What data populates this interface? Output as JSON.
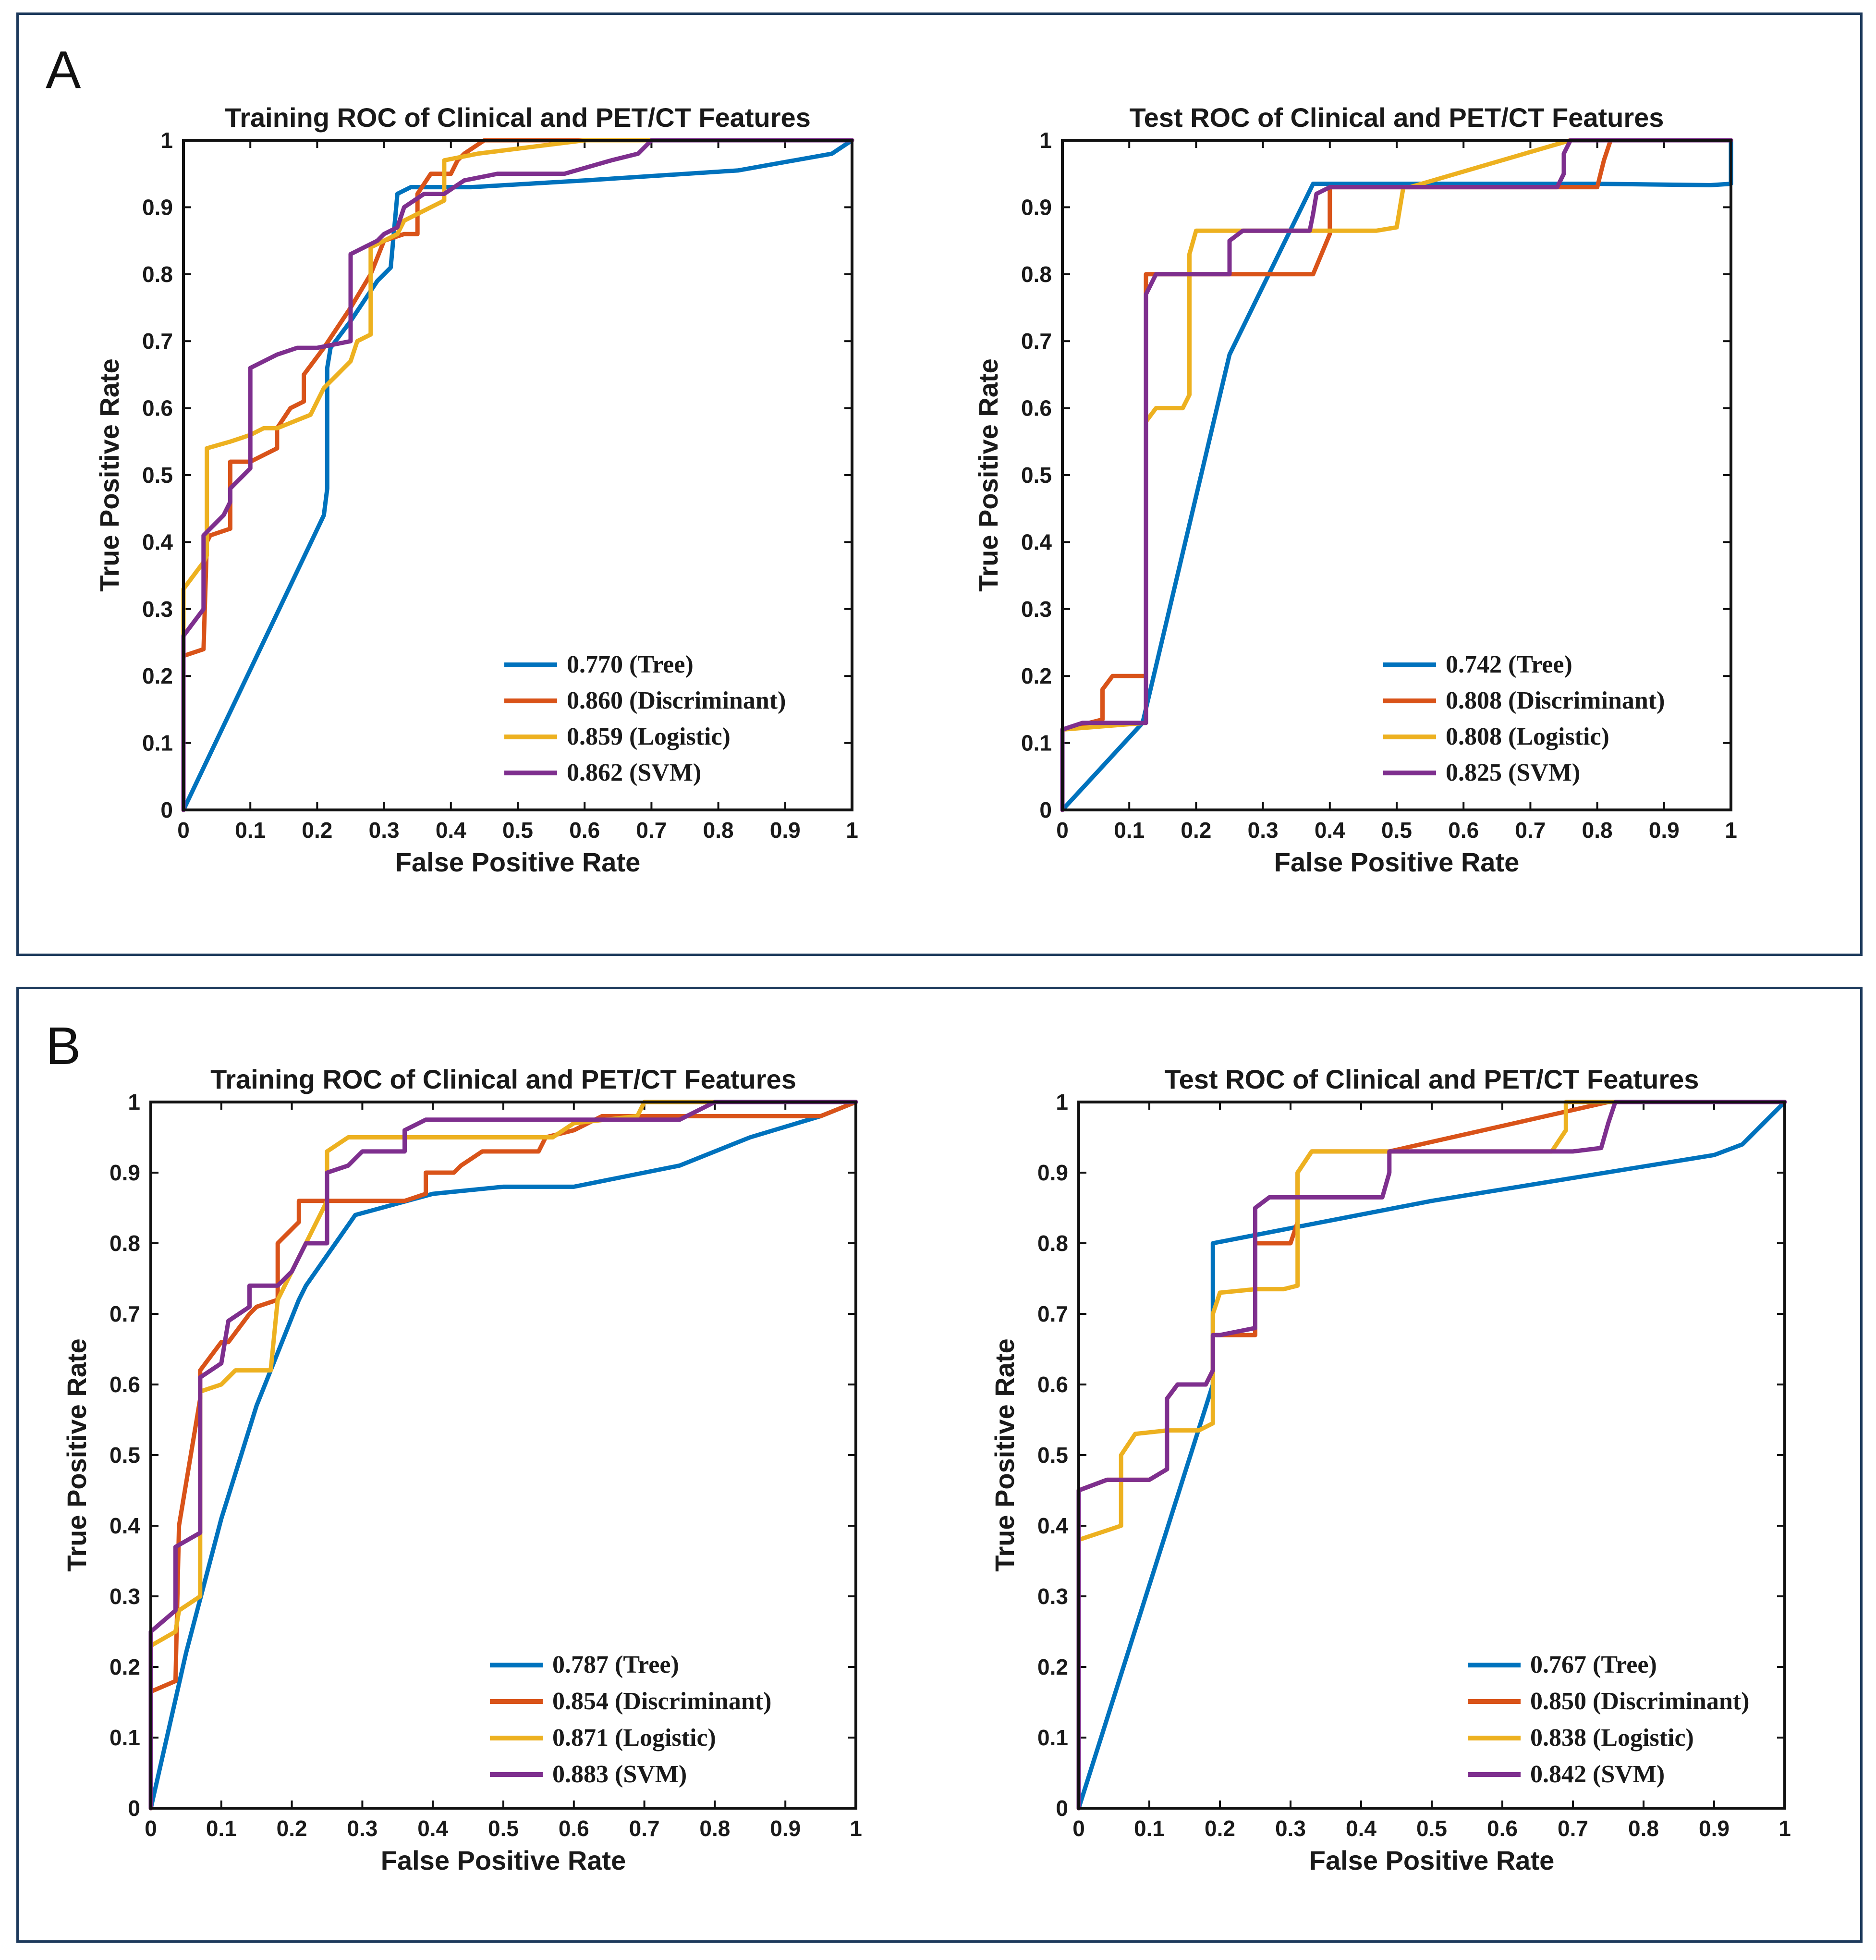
{
  "panels": [
    {
      "label": "A"
    },
    {
      "label": "B"
    }
  ],
  "colors": {
    "tree": "#0072BD",
    "discriminant": "#D95319",
    "logistic": "#EDB120",
    "svm": "#7E2F8E",
    "frame": "#1d3a5c"
  },
  "chart_data": [
    {
      "type": "line",
      "panel": "A",
      "title": "Training ROC of Clinical and PET/CT Features",
      "xlabel": "False Positive Rate",
      "ylabel": "True Positive Rate",
      "xlim": [
        0,
        1
      ],
      "ylim": [
        0,
        1
      ],
      "xticks": [
        "0",
        "0.1",
        "0.2",
        "0.3",
        "0.4",
        "0.5",
        "0.6",
        "0.7",
        "0.8",
        "0.9",
        "1"
      ],
      "yticks": [
        "0",
        "0.1",
        "0.2",
        "0.3",
        "0.4",
        "0.5",
        "0.6",
        "0.7",
        "0.8",
        "0.9",
        "1"
      ],
      "legend_position": "bottom-right",
      "series": [
        {
          "name": "Tree",
          "key": "tree",
          "label": "0.770  (Tree)",
          "x": [
            0,
            0.21,
            0.215,
            0.215,
            0.22,
            0.25,
            0.29,
            0.31,
            0.32,
            0.34,
            0.43,
            0.6,
            0.83,
            0.97,
            1
          ],
          "y": [
            0,
            0.44,
            0.48,
            0.66,
            0.69,
            0.73,
            0.79,
            0.81,
            0.92,
            0.93,
            0.93,
            0.94,
            0.955,
            0.98,
            1
          ]
        },
        {
          "name": "Discriminant",
          "key": "discriminant",
          "label": "0.860  (Discriminant)",
          "x": [
            0,
            0,
            0.03,
            0.035,
            0.04,
            0.07,
            0.07,
            0.1,
            0.14,
            0.14,
            0.16,
            0.18,
            0.18,
            0.21,
            0.25,
            0.28,
            0.3,
            0.33,
            0.35,
            0.35,
            0.37,
            0.4,
            0.41,
            0.42,
            0.45,
            0.7,
            1
          ],
          "y": [
            0,
            0.23,
            0.24,
            0.4,
            0.41,
            0.42,
            0.52,
            0.52,
            0.54,
            0.57,
            0.6,
            0.61,
            0.65,
            0.69,
            0.75,
            0.8,
            0.85,
            0.86,
            0.86,
            0.92,
            0.95,
            0.95,
            0.97,
            0.98,
            1,
            1,
            1
          ]
        },
        {
          "name": "Logistic",
          "key": "logistic",
          "label": "0.859  (Logistic)",
          "x": [
            0,
            0,
            0.03,
            0.035,
            0.035,
            0.07,
            0.1,
            0.12,
            0.14,
            0.19,
            0.21,
            0.23,
            0.25,
            0.26,
            0.28,
            0.28,
            0.32,
            0.33,
            0.37,
            0.39,
            0.39,
            0.44,
            0.6,
            0.7,
            1
          ],
          "y": [
            0,
            0.33,
            0.37,
            0.38,
            0.54,
            0.55,
            0.56,
            0.57,
            0.57,
            0.59,
            0.63,
            0.65,
            0.67,
            0.7,
            0.71,
            0.84,
            0.86,
            0.88,
            0.9,
            0.91,
            0.97,
            0.98,
            1,
            1,
            1
          ]
        },
        {
          "name": "SVM",
          "key": "svm",
          "label": "0.862  (SVM)",
          "x": [
            0,
            0,
            0.03,
            0.03,
            0.06,
            0.07,
            0.07,
            0.1,
            0.1,
            0.14,
            0.17,
            0.2,
            0.25,
            0.25,
            0.29,
            0.3,
            0.32,
            0.33,
            0.36,
            0.39,
            0.42,
            0.47,
            0.57,
            0.64,
            0.68,
            0.7,
            1
          ],
          "y": [
            0,
            0.26,
            0.3,
            0.41,
            0.44,
            0.46,
            0.48,
            0.51,
            0.66,
            0.68,
            0.69,
            0.69,
            0.7,
            0.83,
            0.85,
            0.86,
            0.87,
            0.9,
            0.92,
            0.92,
            0.94,
            0.95,
            0.95,
            0.97,
            0.98,
            1,
            1
          ]
        }
      ]
    },
    {
      "type": "line",
      "panel": "A",
      "title": "Test ROC of Clinical and PET/CT Features",
      "xlabel": "False Positive Rate",
      "ylabel": "True Positive Rate",
      "xlim": [
        0,
        1
      ],
      "ylim": [
        0,
        1
      ],
      "xticks": [
        "0",
        "0.1",
        "0.2",
        "0.3",
        "0.4",
        "0.5",
        "0.6",
        "0.7",
        "0.8",
        "0.9",
        "1"
      ],
      "yticks": [
        "0",
        "0.1",
        "0.2",
        "0.3",
        "0.4",
        "0.5",
        "0.6",
        "0.7",
        "0.8",
        "0.9",
        "1"
      ],
      "legend_position": "bottom-right",
      "series": [
        {
          "name": "Tree",
          "key": "tree",
          "label": "0.742  (Tree)",
          "x": [
            0,
            0.12,
            0.25,
            0.375,
            0.8,
            0.97,
            1,
            1
          ],
          "y": [
            0,
            0.13,
            0.68,
            0.935,
            0.935,
            0.933,
            0.935,
            1
          ]
        },
        {
          "name": "Discriminant",
          "key": "discriminant",
          "label": "0.808  (Discriminant)",
          "x": [
            0,
            0,
            0.06,
            0.06,
            0.075,
            0.125,
            0.125,
            0.375,
            0.4,
            0.4,
            0.75,
            0.8,
            0.81,
            0.82,
            1
          ],
          "y": [
            0,
            0.12,
            0.135,
            0.18,
            0.2,
            0.2,
            0.8,
            0.8,
            0.86,
            0.93,
            0.93,
            0.93,
            0.97,
            1,
            1
          ]
        },
        {
          "name": "Logistic",
          "key": "logistic",
          "label": "0.808  (Logistic)",
          "x": [
            0,
            0,
            0.125,
            0.125,
            0.14,
            0.18,
            0.19,
            0.19,
            0.2,
            0.47,
            0.5,
            0.51,
            0.52,
            0.76,
            1
          ],
          "y": [
            0,
            0.12,
            0.13,
            0.58,
            0.6,
            0.6,
            0.62,
            0.83,
            0.865,
            0.865,
            0.87,
            0.93,
            0.93,
            1,
            1
          ]
        },
        {
          "name": "SVM",
          "key": "svm",
          "label": "0.825  (SVM)",
          "x": [
            0,
            0,
            0.03,
            0.125,
            0.125,
            0.14,
            0.25,
            0.25,
            0.27,
            0.37,
            0.375,
            0.38,
            0.4,
            0.74,
            0.75,
            0.75,
            0.76,
            1
          ],
          "y": [
            0,
            0.12,
            0.13,
            0.13,
            0.77,
            0.8,
            0.8,
            0.85,
            0.865,
            0.865,
            0.89,
            0.92,
            0.93,
            0.93,
            0.95,
            0.98,
            1,
            1
          ]
        }
      ]
    },
    {
      "type": "line",
      "panel": "B",
      "title": "Training ROC of Clinical and PET/CT Features",
      "xlabel": "False Positive Rate",
      "ylabel": "True Positive Rate",
      "xlim": [
        0,
        1
      ],
      "ylim": [
        0,
        1
      ],
      "xticks": [
        "0",
        "0.1",
        "0.2",
        "0.3",
        "0.4",
        "0.5",
        "0.6",
        "0.7",
        "0.8",
        "0.9",
        "1"
      ],
      "yticks": [
        "0",
        "0.1",
        "0.2",
        "0.3",
        "0.4",
        "0.5",
        "0.6",
        "0.7",
        "0.8",
        "0.9",
        "1"
      ],
      "legend_position": "bottom-right",
      "series": [
        {
          "name": "Tree",
          "key": "tree",
          "label": "0.787 (Tree)",
          "x": [
            0,
            0.05,
            0.1,
            0.15,
            0.21,
            0.22,
            0.29,
            0.4,
            0.5,
            0.6,
            0.75,
            0.85,
            0.95,
            1
          ],
          "y": [
            0,
            0.22,
            0.41,
            0.57,
            0.72,
            0.74,
            0.84,
            0.87,
            0.88,
            0.88,
            0.91,
            0.95,
            0.98,
            1
          ],
          "note": "approximate"
        },
        {
          "name": "Discriminant",
          "key": "discriminant",
          "label": "0.854 (Discriminant)",
          "x": [
            0,
            0,
            0.035,
            0.04,
            0.07,
            0.07,
            0.1,
            0.11,
            0.14,
            0.15,
            0.18,
            0.18,
            0.19,
            0.21,
            0.21,
            0.3,
            0.36,
            0.39,
            0.39,
            0.43,
            0.44,
            0.47,
            0.55,
            0.56,
            0.6,
            0.64,
            0.74,
            0.95,
            1
          ],
          "y": [
            0,
            0.165,
            0.18,
            0.4,
            0.58,
            0.62,
            0.66,
            0.66,
            0.7,
            0.71,
            0.72,
            0.8,
            0.81,
            0.83,
            0.86,
            0.86,
            0.86,
            0.87,
            0.9,
            0.9,
            0.91,
            0.93,
            0.93,
            0.95,
            0.96,
            0.98,
            0.98,
            0.98,
            1
          ]
        },
        {
          "name": "Logistic",
          "key": "logistic",
          "label": "0.871 (Logistic)",
          "x": [
            0,
            0,
            0.035,
            0.04,
            0.07,
            0.07,
            0.1,
            0.12,
            0.17,
            0.18,
            0.23,
            0.25,
            0.25,
            0.28,
            0.32,
            0.36,
            0.57,
            0.6,
            0.69,
            0.7,
            0.72,
            1
          ],
          "y": [
            0,
            0.23,
            0.25,
            0.28,
            0.3,
            0.59,
            0.6,
            0.62,
            0.62,
            0.72,
            0.82,
            0.86,
            0.93,
            0.95,
            0.95,
            0.95,
            0.95,
            0.97,
            0.98,
            1,
            1,
            1
          ]
        },
        {
          "name": "SVM",
          "key": "svm",
          "label": "0.883 (SVM)",
          "x": [
            0,
            0,
            0.035,
            0.035,
            0.07,
            0.07,
            0.1,
            0.11,
            0.14,
            0.14,
            0.18,
            0.2,
            0.21,
            0.22,
            0.25,
            0.25,
            0.28,
            0.3,
            0.36,
            0.36,
            0.39,
            0.5,
            0.75,
            0.8,
            1
          ],
          "y": [
            0,
            0.25,
            0.28,
            0.37,
            0.39,
            0.61,
            0.63,
            0.69,
            0.71,
            0.74,
            0.74,
            0.76,
            0.78,
            0.8,
            0.8,
            0.9,
            0.91,
            0.93,
            0.93,
            0.96,
            0.975,
            0.975,
            0.975,
            1,
            1
          ]
        }
      ]
    },
    {
      "type": "line",
      "panel": "B",
      "title": "Test ROC of Clinical and PET/CT Features",
      "xlabel": "False Positive Rate",
      "ylabel": "True Positive Rate",
      "xlim": [
        0,
        1
      ],
      "ylim": [
        0,
        1
      ],
      "xticks": [
        "0",
        "0.1",
        "0.2",
        "0.3",
        "0.4",
        "0.5",
        "0.6",
        "0.7",
        "0.8",
        "0.9",
        "1"
      ],
      "yticks": [
        "0",
        "0.1",
        "0.2",
        "0.3",
        "0.4",
        "0.5",
        "0.6",
        "0.7",
        "0.8",
        "0.9",
        "1"
      ],
      "legend_position": "bottom-right",
      "series": [
        {
          "name": "Tree",
          "key": "tree",
          "label": "0.767 (Tree)",
          "x": [
            0,
            0.19,
            0.19,
            0.5,
            0.9,
            0.94,
            1
          ],
          "y": [
            0,
            0.6,
            0.8,
            0.86,
            0.925,
            0.94,
            1
          ]
        },
        {
          "name": "Discriminant",
          "key": "discriminant",
          "label": "0.850 (Discriminant)",
          "x": [
            0,
            0,
            0.04,
            0.06,
            0.1,
            0.125,
            0.125,
            0.14,
            0.18,
            0.19,
            0.19,
            0.25,
            0.25,
            0.27,
            0.3,
            0.31,
            0.31,
            0.33,
            0.44,
            0.75,
            1
          ],
          "y": [
            0,
            0.45,
            0.465,
            0.465,
            0.465,
            0.48,
            0.58,
            0.6,
            0.6,
            0.62,
            0.67,
            0.67,
            0.8,
            0.8,
            0.8,
            0.83,
            0.9,
            0.93,
            0.93,
            1,
            1
          ]
        },
        {
          "name": "Logistic",
          "key": "logistic",
          "label": "0.838 (Logistic)",
          "x": [
            0,
            0,
            0.06,
            0.06,
            0.08,
            0.125,
            0.14,
            0.17,
            0.19,
            0.19,
            0.2,
            0.25,
            0.29,
            0.31,
            0.31,
            0.33,
            0.44,
            0.67,
            0.69,
            0.69,
            0.72,
            1
          ],
          "y": [
            0,
            0.38,
            0.4,
            0.5,
            0.53,
            0.535,
            0.535,
            0.535,
            0.545,
            0.7,
            0.73,
            0.735,
            0.735,
            0.74,
            0.9,
            0.93,
            0.93,
            0.93,
            0.96,
            1,
            1,
            1
          ]
        },
        {
          "name": "SVM",
          "key": "svm",
          "label": "0.842 (SVM)",
          "x": [
            0,
            0,
            0.04,
            0.06,
            0.1,
            0.125,
            0.125,
            0.14,
            0.18,
            0.19,
            0.19,
            0.2,
            0.25,
            0.25,
            0.27,
            0.31,
            0.33,
            0.43,
            0.44,
            0.44,
            0.7,
            0.74,
            0.75,
            0.76,
            1
          ],
          "y": [
            0,
            0.45,
            0.465,
            0.465,
            0.465,
            0.48,
            0.58,
            0.6,
            0.6,
            0.62,
            0.67,
            0.67,
            0.68,
            0.85,
            0.865,
            0.865,
            0.865,
            0.865,
            0.9,
            0.93,
            0.93,
            0.935,
            0.97,
            1,
            1
          ]
        }
      ]
    }
  ]
}
